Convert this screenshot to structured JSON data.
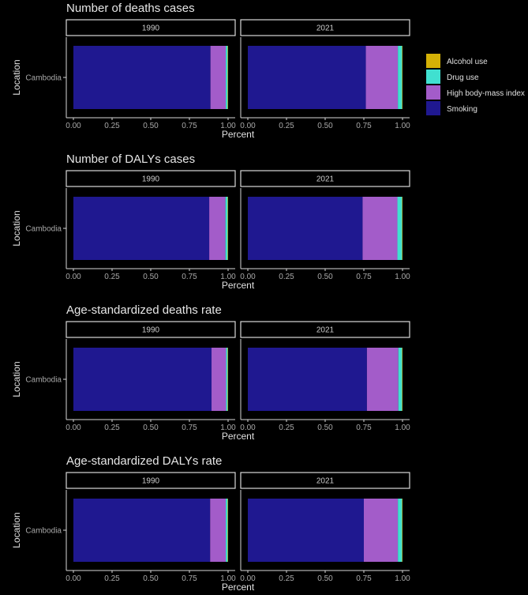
{
  "colors": {
    "Alcohol use": "#d4b106",
    "Drug use": "#40e0d0",
    "High body-mass index": "#a35cc9",
    "Smoking": "#1f1890",
    "background": "#000000",
    "strip_border": "#d9d9d9",
    "axis": "#d9d9d9"
  },
  "legend": {
    "items": [
      "Alcohol use",
      "Drug use",
      "High body-mass index",
      "Smoking"
    ]
  },
  "chart_data": [
    {
      "type": "bar",
      "orientation": "horizontal-stacked-percent",
      "title": "Number of deaths cases",
      "ylabel": "Location",
      "xlabel": "Percent",
      "categories": [
        "Cambodia"
      ],
      "xlim": [
        0,
        1
      ],
      "xticks": [
        "0.00",
        "0.25",
        "0.50",
        "0.75",
        "1.00"
      ],
      "panels": [
        {
          "label": "1990",
          "series": [
            {
              "name": "Smoking",
              "value": 0.886
            },
            {
              "name": "High body-mass index",
              "value": 0.099
            },
            {
              "name": "Drug use",
              "value": 0.012
            },
            {
              "name": "Alcohol use",
              "value": 0.003
            }
          ]
        },
        {
          "label": "2021",
          "series": [
            {
              "name": "Smoking",
              "value": 0.763
            },
            {
              "name": "High body-mass index",
              "value": 0.207
            },
            {
              "name": "Drug use",
              "value": 0.027
            },
            {
              "name": "Alcohol use",
              "value": 0.003
            }
          ]
        }
      ]
    },
    {
      "type": "bar",
      "orientation": "horizontal-stacked-percent",
      "title": "Number of DALYs cases",
      "ylabel": "Location",
      "xlabel": "Percent",
      "categories": [
        "Cambodia"
      ],
      "xlim": [
        0,
        1
      ],
      "xticks": [
        "0.00",
        "0.25",
        "0.50",
        "0.75",
        "1.00"
      ],
      "panels": [
        {
          "label": "1990",
          "series": [
            {
              "name": "Smoking",
              "value": 0.878
            },
            {
              "name": "High body-mass index",
              "value": 0.105
            },
            {
              "name": "Drug use",
              "value": 0.014
            },
            {
              "name": "Alcohol use",
              "value": 0.003
            }
          ]
        },
        {
          "label": "2021",
          "series": [
            {
              "name": "Smoking",
              "value": 0.742
            },
            {
              "name": "High body-mass index",
              "value": 0.225
            },
            {
              "name": "Drug use",
              "value": 0.03
            },
            {
              "name": "Alcohol use",
              "value": 0.003
            }
          ]
        }
      ]
    },
    {
      "type": "bar",
      "orientation": "horizontal-stacked-percent",
      "title": "Age-standardized deaths rate",
      "ylabel": "Location",
      "xlabel": "Percent",
      "categories": [
        "Cambodia"
      ],
      "xlim": [
        0,
        1
      ],
      "xticks": [
        "0.00",
        "0.25",
        "0.50",
        "0.75",
        "1.00"
      ],
      "panels": [
        {
          "label": "1990",
          "series": [
            {
              "name": "Smoking",
              "value": 0.893
            },
            {
              "name": "High body-mass index",
              "value": 0.094
            },
            {
              "name": "Drug use",
              "value": 0.01
            },
            {
              "name": "Alcohol use",
              "value": 0.003
            }
          ]
        },
        {
          "label": "2021",
          "series": [
            {
              "name": "Smoking",
              "value": 0.77
            },
            {
              "name": "High body-mass index",
              "value": 0.203
            },
            {
              "name": "Drug use",
              "value": 0.024
            },
            {
              "name": "Alcohol use",
              "value": 0.003
            }
          ]
        }
      ]
    },
    {
      "type": "bar",
      "orientation": "horizontal-stacked-percent",
      "title": "Age-standardized DALYs rate",
      "ylabel": "Location",
      "xlabel": "Percent",
      "categories": [
        "Cambodia"
      ],
      "xlim": [
        0,
        1
      ],
      "xticks": [
        "0.00",
        "0.25",
        "0.50",
        "0.75",
        "1.00"
      ],
      "panels": [
        {
          "label": "1990",
          "series": [
            {
              "name": "Smoking",
              "value": 0.884
            },
            {
              "name": "High body-mass index",
              "value": 0.101
            },
            {
              "name": "Drug use",
              "value": 0.012
            },
            {
              "name": "Alcohol use",
              "value": 0.003
            }
          ]
        },
        {
          "label": "2021",
          "series": [
            {
              "name": "Smoking",
              "value": 0.75
            },
            {
              "name": "High body-mass index",
              "value": 0.22
            },
            {
              "name": "Drug use",
              "value": 0.027
            },
            {
              "name": "Alcohol use",
              "value": 0.003
            }
          ]
        }
      ]
    }
  ]
}
